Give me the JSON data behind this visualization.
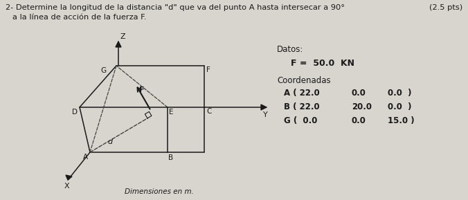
{
  "title_line1": "2- Determine la longitud de la distancia \"d\" que va del punto A hasta intersecar a 90°",
  "title_line2": "a la línea de acción de la fuerza F.",
  "pts_label": "(2.5 pts)",
  "datos_label": "Datos:",
  "F_label": "F =  50.0  KN",
  "coord_label": "Coordenadas",
  "A_coord": "A ( 22.0     0.0     0.0  )",
  "B_coord": "B ( 22.0    20.0     0.0  )",
  "G_coord": "G (  0.0     0.0    15.0  )",
  "dim_label": "Dimensiones en m.",
  "bg_color": "#d8d4ce",
  "line_color": "#1a1a1a",
  "dashed_color": "#444444",
  "text_color": "#1a1a1a"
}
